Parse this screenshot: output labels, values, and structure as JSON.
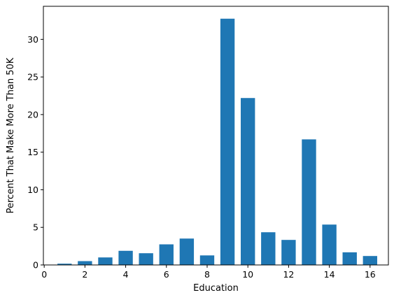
{
  "chart_data": {
    "type": "bar",
    "title": "",
    "xlabel": "Education",
    "ylabel": "Percent That Make More Than 50K",
    "x": [
      1,
      2,
      3,
      4,
      5,
      6,
      7,
      8,
      9,
      10,
      11,
      12,
      13,
      14,
      15,
      16
    ],
    "values": [
      0.17,
      0.51,
      1.0,
      1.88,
      1.56,
      2.74,
      3.51,
      1.27,
      32.75,
      22.2,
      4.35,
      3.33,
      16.7,
      5.37,
      1.68,
      1.19
    ],
    "xlim": [
      -0.04,
      16.9
    ],
    "ylim": [
      0,
      34.4
    ],
    "xticks": [
      0,
      2,
      4,
      6,
      8,
      10,
      12,
      14,
      16
    ],
    "yticks": [
      0,
      5,
      10,
      15,
      20,
      25,
      30
    ],
    "bar_width": 0.7,
    "grid": false,
    "colors": {
      "bar": "#1f77b4",
      "axis": "#000000"
    }
  }
}
